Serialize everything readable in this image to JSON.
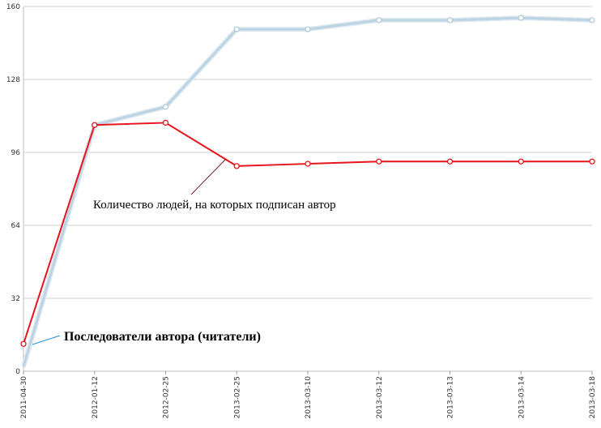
{
  "chart_data": {
    "type": "line",
    "categories": [
      "2011-04-30",
      "2012-01-12",
      "2012-02-25",
      "2013-02-25",
      "2013-03-10",
      "2013-03-12",
      "2013-03-13",
      "2013-03-14",
      "2013-03-18"
    ],
    "series": [
      {
        "name": "Последователи автора (читатели)",
        "values": [
          2,
          108,
          116,
          150,
          150,
          154,
          154,
          155,
          154
        ],
        "color": "#bcd3e3"
      },
      {
        "name": "Количество людей, на которых подписан автор",
        "values": [
          12,
          108,
          109,
          90,
          91,
          92,
          92,
          92,
          92
        ],
        "color": "#e8141c"
      }
    ],
    "y_ticks": [
      "0",
      "32",
      "64",
      "96",
      "128",
      "160"
    ],
    "ylim": [
      0,
      160
    ],
    "grid": true,
    "annotations": {
      "followers": "Последователи автора (читатели)",
      "following": "Количество людей, на которых подписан автор"
    }
  }
}
